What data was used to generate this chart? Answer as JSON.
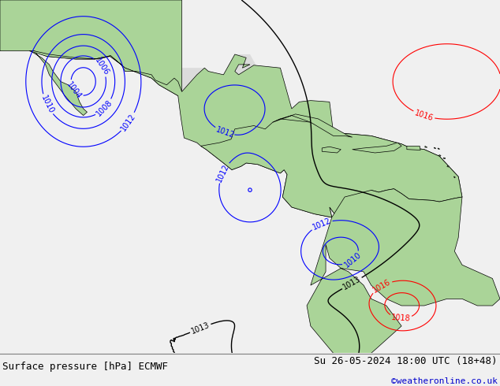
{
  "title_left": "Surface pressure [hPa] ECMWF",
  "title_right": "Su 26-05-2024 18:00 UTC (18+48)",
  "copyright": "©weatheronline.co.uk",
  "bg_color": "#f0f0f0",
  "ocean_color": "#d8d8d8",
  "land_color_green": "#aad498",
  "land_color_gray": "#b0b0b0",
  "fig_width": 6.34,
  "fig_height": 4.9,
  "dpi": 100,
  "footer_fontsize": 9,
  "copyright_fontsize": 8,
  "copyright_color": "#0000cc",
  "contour_blue": "#0000ff",
  "contour_red": "#ff0000",
  "contour_black": "#000000",
  "label_fontsize": 7,
  "lon_min": -121,
  "lon_max": -55,
  "lat_min": -12,
  "lat_max": 40
}
